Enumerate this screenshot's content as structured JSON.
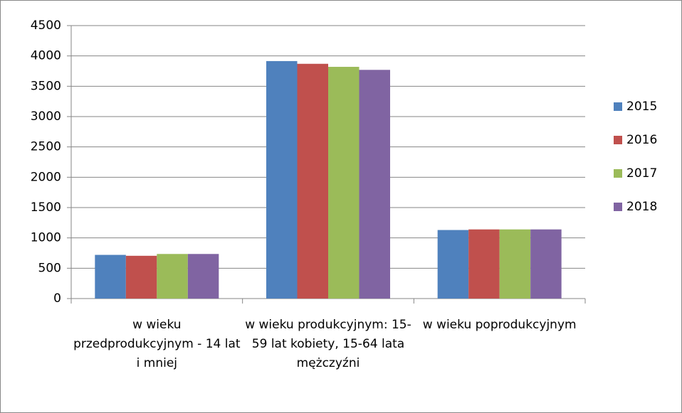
{
  "chart_data": {
    "type": "bar",
    "categories": [
      "w wieku przedprodukcyjnym - 14 lat i mniej",
      "w wieku produkcyjnym: 15-59 lat kobiety, 15-64 lata mężczyźni",
      "w wieku poprodukcyjnym"
    ],
    "series": [
      {
        "name": "2015",
        "color": "#4f81bd",
        "values": [
          720,
          3915,
          1130
        ]
      },
      {
        "name": "2016",
        "color": "#c0504d",
        "values": [
          705,
          3870,
          1140
        ]
      },
      {
        "name": "2017",
        "color": "#9bbb59",
        "values": [
          735,
          3820,
          1140
        ]
      },
      {
        "name": "2018",
        "color": "#8064a2",
        "values": [
          735,
          3770,
          1140
        ]
      }
    ],
    "ylim": [
      0,
      4500
    ],
    "yticks": [
      0,
      500,
      1000,
      1500,
      2000,
      2500,
      3000,
      3500,
      4000,
      4500
    ],
    "grid": true,
    "legend": "right"
  }
}
